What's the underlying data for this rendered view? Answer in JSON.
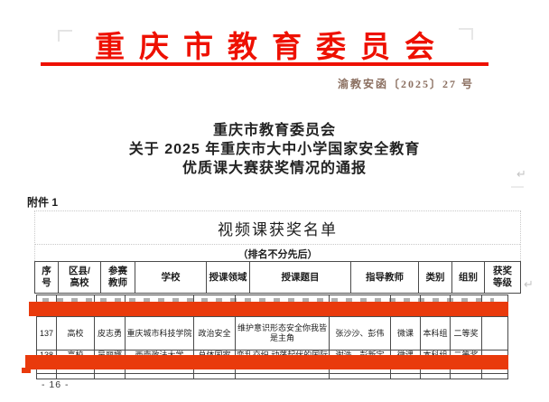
{
  "letterhead": {
    "title": "重庆市教育委员会",
    "doc_number": "渝教安函〔2025〕27 号"
  },
  "title": {
    "lines": [
      "重庆市教育委员会",
      "关于 2025 年重庆市大中小学国家安全教育",
      "优质课大赛获奖情况的通报"
    ]
  },
  "attachment_label": "附件 1",
  "table": {
    "caption": "视频课获奖名单",
    "subcaption": "（排名不分先后）",
    "columns": [
      "序号",
      "区县/高校",
      "参赛教师",
      "学校",
      "授课领域",
      "授课题目",
      "指导教师",
      "类别",
      "组别",
      "获奖等级"
    ],
    "rows": [
      [
        "137",
        "高校",
        "皮志勇",
        "重庆城市科技学院",
        "政治安全",
        "维护意识形态安全你我皆是主角",
        "张沙沙、彭伟",
        "微课",
        "本科组",
        "二等奖"
      ],
      [
        "138",
        "高校",
        "吴丽娜",
        "西南政法大学",
        "总体国家安全观",
        "变乱交织 动荡起伏的国际",
        "谢浩、彭新宇",
        "微课",
        "本科组",
        "二等奖"
      ]
    ]
  },
  "marks": {
    "return_mark": "↵"
  },
  "page_number": "- 16 -",
  "colors": {
    "letterhead_red": "#ee1000",
    "redaction_red": "#e93a0c"
  }
}
